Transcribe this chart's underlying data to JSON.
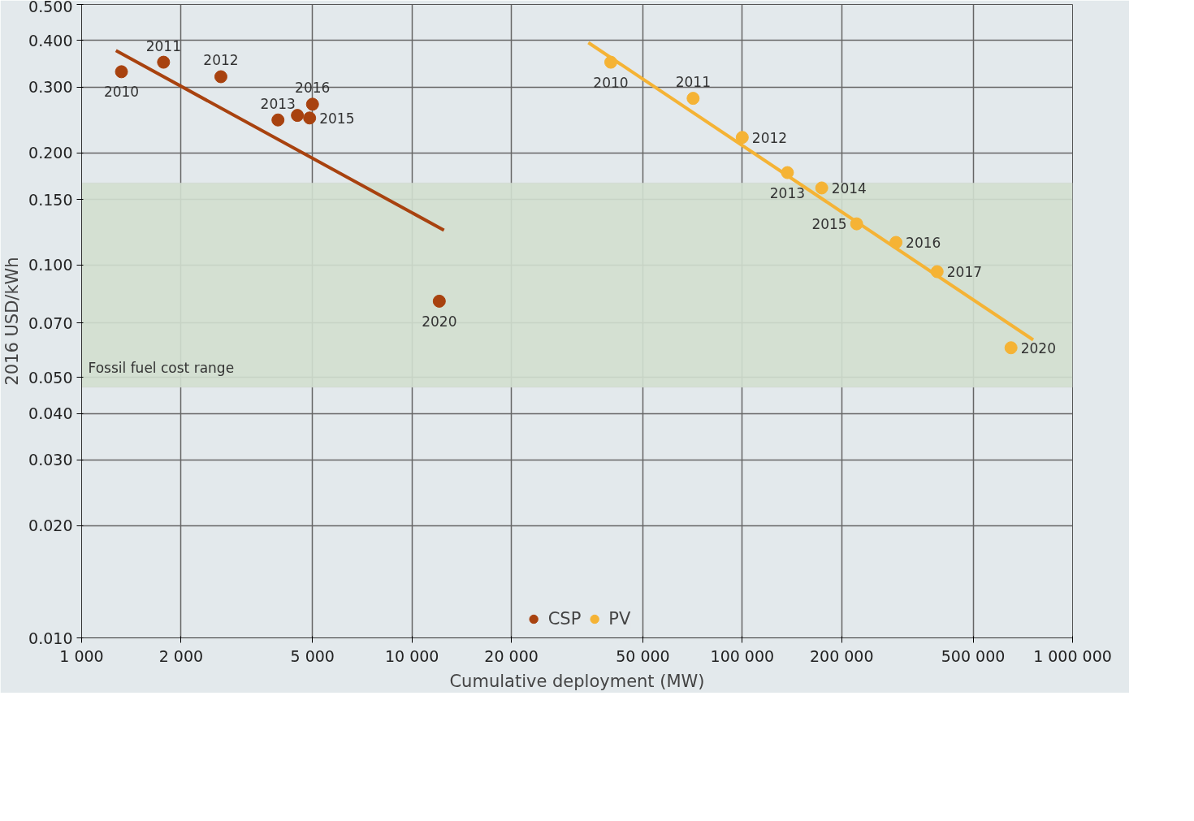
{
  "chart_data": {
    "type": "scatter",
    "xlabel": "Cumulative deployment (MW)",
    "ylabel": "2016 USD/kWh",
    "log": "xy",
    "xlim": [
      1000,
      1000000
    ],
    "ylim": [
      0.01,
      0.5
    ],
    "xticks": [
      {
        "value": 1000,
        "label": "1 000"
      },
      {
        "value": 2000,
        "label": "2 000"
      },
      {
        "value": 5000,
        "label": "5 000"
      },
      {
        "value": 10000,
        "label": "10 000"
      },
      {
        "value": 20000,
        "label": "20 000"
      },
      {
        "value": 50000,
        "label": "50 000"
      },
      {
        "value": 100000,
        "label": "100 000"
      },
      {
        "value": 200000,
        "label": "200 000"
      },
      {
        "value": 500000,
        "label": "500 000"
      },
      {
        "value": 1000000,
        "label": "1 000 000"
      }
    ],
    "yticks": [
      {
        "value": 0.01,
        "label": "0.010"
      },
      {
        "value": 0.02,
        "label": "0.020"
      },
      {
        "value": 0.03,
        "label": "0.030"
      },
      {
        "value": 0.04,
        "label": "0.040"
      },
      {
        "value": 0.05,
        "label": "0.050"
      },
      {
        "value": 0.07,
        "label": "0.070"
      },
      {
        "value": 0.1,
        "label": "0.100"
      },
      {
        "value": 0.15,
        "label": "0.150"
      },
      {
        "value": 0.2,
        "label": "0.200"
      },
      {
        "value": 0.3,
        "label": "0.300"
      },
      {
        "value": 0.4,
        "label": "0.400"
      },
      {
        "value": 0.5,
        "label": "0.500"
      }
    ],
    "grid": true,
    "legend": "bottom",
    "line_style": "solid",
    "bands": [
      {
        "axis": "y",
        "from": 0.047,
        "to": 0.166,
        "label": "Fossil fuel cost range",
        "color": "#d2dfcf"
      }
    ],
    "series": [
      {
        "name": "CSP",
        "color": "#a8420f",
        "marker": "circle",
        "x": [
          1320,
          1770,
          2640,
          3930,
          4500,
          5000,
          4900,
          12100
        ],
        "values": [
          0.33,
          0.35,
          0.32,
          0.245,
          0.252,
          0.27,
          0.248,
          0.08
        ]
      },
      {
        "name": "PV",
        "color": "#f5b335",
        "marker": "circle",
        "x": [
          40000,
          71000,
          100000,
          137000,
          174000,
          222000,
          292000,
          389000,
          651000
        ],
        "values": [
          0.35,
          0.28,
          0.22,
          0.177,
          0.161,
          0.129,
          0.115,
          0.096,
          0.06
        ]
      },
      {
        "color": "#a8420f",
        "type": "line",
        "x": [
          1270,
          12500
        ],
        "values": [
          0.376,
          0.124
        ]
      },
      {
        "color": "#f5b335",
        "type": "line",
        "x": [
          34200,
          760000
        ],
        "values": [
          0.395,
          0.063
        ]
      }
    ],
    "annotations": [
      {
        "text": "2010",
        "x": 1320,
        "y": 0.33
      },
      {
        "text": "2011",
        "x": 1770,
        "y": 0.35
      },
      {
        "text": "2012",
        "x": 2640,
        "y": 0.32
      },
      {
        "text": "2013",
        "x": 3930,
        "y": 0.245
      },
      {
        "text": "2016",
        "x": 5000,
        "y": 0.27
      },
      {
        "text": "2015",
        "x": 4900,
        "y": 0.248
      },
      {
        "text": "2020",
        "x": 12100,
        "y": 0.08
      },
      {
        "text": "2010",
        "x": 40000,
        "y": 0.35
      },
      {
        "text": "2011",
        "x": 71000,
        "y": 0.28
      },
      {
        "text": "2012",
        "x": 100000,
        "y": 0.22
      },
      {
        "text": "2013",
        "x": 137000,
        "y": 0.177
      },
      {
        "text": "2014",
        "x": 174000,
        "y": 0.161
      },
      {
        "text": "2015",
        "x": 222000,
        "y": 0.129
      },
      {
        "text": "2016",
        "x": 292000,
        "y": 0.115
      },
      {
        "text": "2017",
        "x": 389000,
        "y": 0.096
      },
      {
        "text": "2020",
        "x": 651000,
        "y": 0.06
      }
    ]
  }
}
